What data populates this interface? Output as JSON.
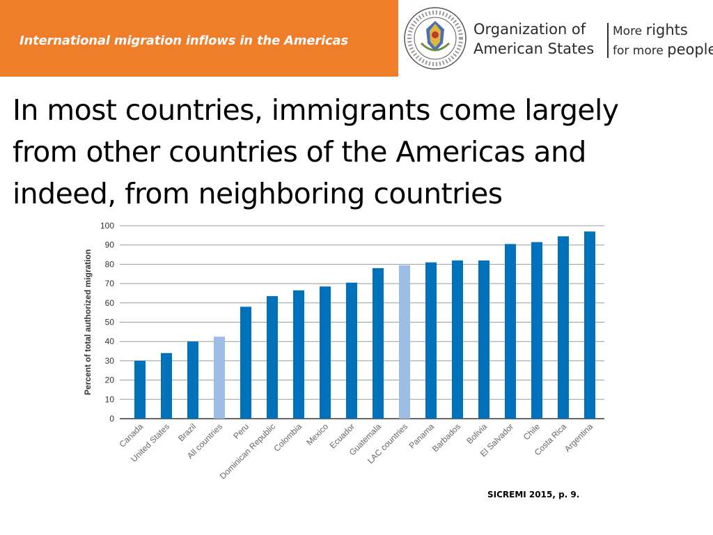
{
  "header": {
    "title": "International migration inflows in the Americas",
    "org_name_line1": "Organization of",
    "org_name_line2": "American States",
    "slogan_word1": "More",
    "slogan_word2": "rights",
    "slogan_word3": "for more",
    "slogan_word4": "people",
    "seal_text": "ORGANIZATION OF AMERICAN STATES"
  },
  "headline": {
    "line1": "In most countries, immigrants come largely",
    "line2": "from other countries of the Americas and",
    "line3": "indeed, from neighboring countries"
  },
  "source": "SICREMI 2015, p. 9.",
  "colors": {
    "header_bg": "#f07d2a",
    "bar_primary": "#0072bc",
    "bar_highlight": "#9dbde6"
  },
  "chart_data": {
    "type": "bar",
    "ylabel": "Percent of total authorized migration",
    "ylim": [
      0,
      100
    ],
    "yticks": [
      0,
      10,
      20,
      30,
      40,
      50,
      60,
      70,
      80,
      90,
      100
    ],
    "grid": true,
    "categories": [
      "Canada",
      "United States",
      "Brazil",
      "All countries",
      "Peru",
      "Dominican Republic",
      "Colombia",
      "Mexico",
      "Ecuador",
      "Guatemala",
      "LAC countries",
      "Panama",
      "Barbados",
      "Bolivia",
      "El Salvador",
      "Chile",
      "Costa Rica",
      "Argentina"
    ],
    "values": [
      30,
      34,
      40,
      42.5,
      58,
      63.5,
      66.5,
      68.5,
      70.5,
      78,
      79.5,
      81,
      82,
      82,
      90.5,
      91.5,
      94.5,
      97
    ],
    "highlighted": [
      "All countries",
      "LAC countries"
    ]
  }
}
